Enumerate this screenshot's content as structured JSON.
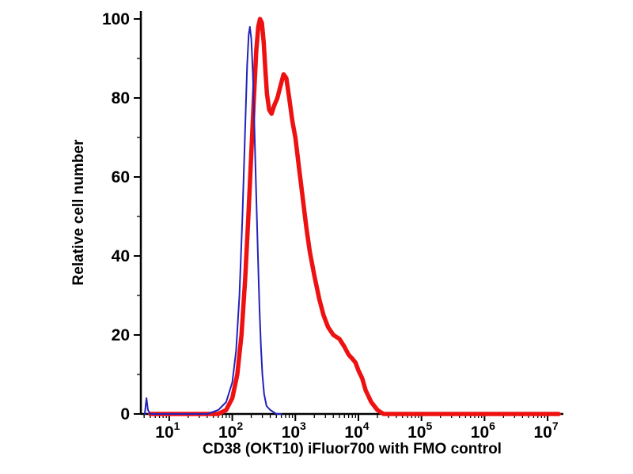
{
  "chart_data": {
    "type": "line",
    "title": "",
    "xlabel": "CD38 (OKT10) iFluor700 with FMO control",
    "ylabel": "Relative cell number",
    "x_scale": "log",
    "xlim_log10": [
      0.55,
      7.25
    ],
    "x_major_tick_decades": [
      1,
      2,
      3,
      4,
      5,
      6,
      7
    ],
    "x_tick_base": "10",
    "ylim": [
      0,
      102
    ],
    "y_major_ticks": [
      0,
      20,
      40,
      60,
      80,
      100
    ],
    "y_minor_ticks": [
      10,
      30,
      50,
      70,
      90
    ],
    "grid": false,
    "legend": "none",
    "axis_color": "#000000",
    "series": [
      {
        "name": "CD38 (OKT10) iFluor700",
        "color": "#ee1111",
        "stroke_width": 5.5,
        "points": [
          [
            5,
            0
          ],
          [
            60,
            0
          ],
          [
            80,
            1
          ],
          [
            100,
            4
          ],
          [
            120,
            10
          ],
          [
            140,
            20
          ],
          [
            160,
            34
          ],
          [
            180,
            50
          ],
          [
            200,
            66
          ],
          [
            220,
            80
          ],
          [
            240,
            92
          ],
          [
            258,
            98
          ],
          [
            275,
            100
          ],
          [
            295,
            99
          ],
          [
            315,
            94
          ],
          [
            335,
            87
          ],
          [
            355,
            81
          ],
          [
            385,
            77
          ],
          [
            420,
            76
          ],
          [
            460,
            78
          ],
          [
            520,
            80
          ],
          [
            580,
            83
          ],
          [
            650,
            86
          ],
          [
            720,
            85
          ],
          [
            800,
            80
          ],
          [
            900,
            74
          ],
          [
            1000,
            70
          ],
          [
            1150,
            62
          ],
          [
            1300,
            55
          ],
          [
            1500,
            47
          ],
          [
            1700,
            41
          ],
          [
            2000,
            35
          ],
          [
            2400,
            29
          ],
          [
            2800,
            25
          ],
          [
            3300,
            22
          ],
          [
            4000,
            20
          ],
          [
            5000,
            19
          ],
          [
            6000,
            17
          ],
          [
            7000,
            15
          ],
          [
            8000,
            14
          ],
          [
            9000,
            13
          ],
          [
            10000,
            11
          ],
          [
            11500,
            9
          ],
          [
            13000,
            6
          ],
          [
            16000,
            3
          ],
          [
            20000,
            1
          ],
          [
            25000,
            0
          ],
          [
            15000000,
            0
          ]
        ]
      },
      {
        "name": "FMO control",
        "color": "#2222bb",
        "stroke_width": 2,
        "points": [
          [
            4.1,
            0
          ],
          [
            4.35,
            4
          ],
          [
            4.6,
            1
          ],
          [
            5,
            0
          ],
          [
            40,
            0
          ],
          [
            60,
            1
          ],
          [
            80,
            3
          ],
          [
            100,
            8
          ],
          [
            115,
            16
          ],
          [
            130,
            30
          ],
          [
            145,
            50
          ],
          [
            160,
            72
          ],
          [
            172,
            88
          ],
          [
            182,
            96
          ],
          [
            190,
            98
          ],
          [
            200,
            95
          ],
          [
            212,
            86
          ],
          [
            225,
            72
          ],
          [
            240,
            55
          ],
          [
            255,
            40
          ],
          [
            270,
            27
          ],
          [
            285,
            17
          ],
          [
            300,
            10
          ],
          [
            320,
            5
          ],
          [
            350,
            2
          ],
          [
            400,
            1
          ],
          [
            500,
            0
          ],
          [
            600,
            0
          ]
        ]
      }
    ]
  }
}
